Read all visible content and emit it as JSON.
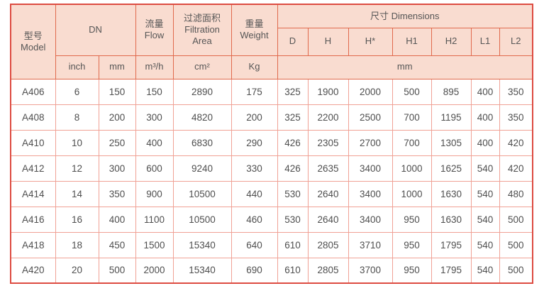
{
  "table": {
    "header": {
      "model_zh": "型号",
      "model_en": "Model",
      "dn": "DN",
      "flow_zh": "流量",
      "flow_en": "Flow",
      "filtration_zh": "过滤面积",
      "filtration_en1": "Filtration",
      "filtration_en2": "Area",
      "weight_zh": "重量",
      "weight_en": "Weight",
      "dimensions": "尺寸 Dimensions",
      "dim_cols": [
        "D",
        "H",
        "H*",
        "H1",
        "H2",
        "L1",
        "L2"
      ],
      "unit_inch": "inch",
      "unit_mm": "mm",
      "unit_flow": "m³/h",
      "unit_area": "cm²",
      "unit_weight": "Kg",
      "unit_dims": "mm"
    },
    "rows": [
      [
        "A406",
        "6",
        "150",
        "150",
        "2890",
        "175",
        "325",
        "1900",
        "2000",
        "500",
        "895",
        "400",
        "350"
      ],
      [
        "A408",
        "8",
        "200",
        "300",
        "4820",
        "200",
        "325",
        "2200",
        "2500",
        "700",
        "1195",
        "400",
        "350"
      ],
      [
        "A410",
        "10",
        "250",
        "400",
        "6830",
        "290",
        "426",
        "2305",
        "2700",
        "700",
        "1305",
        "400",
        "420"
      ],
      [
        "A412",
        "12",
        "300",
        "600",
        "9240",
        "330",
        "426",
        "2635",
        "3400",
        "1000",
        "1625",
        "540",
        "420"
      ],
      [
        "A414",
        "14",
        "350",
        "900",
        "10500",
        "440",
        "530",
        "2640",
        "3400",
        "1000",
        "1630",
        "540",
        "480"
      ],
      [
        "A416",
        "16",
        "400",
        "1100",
        "10500",
        "460",
        "530",
        "2640",
        "3400",
        "950",
        "1630",
        "540",
        "500"
      ],
      [
        "A418",
        "18",
        "450",
        "1500",
        "15340",
        "640",
        "610",
        "2805",
        "3710",
        "950",
        "1795",
        "540",
        "500"
      ],
      [
        "A420",
        "20",
        "500",
        "2000",
        "15340",
        "690",
        "610",
        "2805",
        "3700",
        "950",
        "1795",
        "540",
        "500"
      ]
    ],
    "colors": {
      "header_bg": "#f9dcd0",
      "outer_border": "#dd4b41",
      "header_border": "#e0694c",
      "cell_border": "#f0a195",
      "text": "#4f4f4f"
    }
  }
}
